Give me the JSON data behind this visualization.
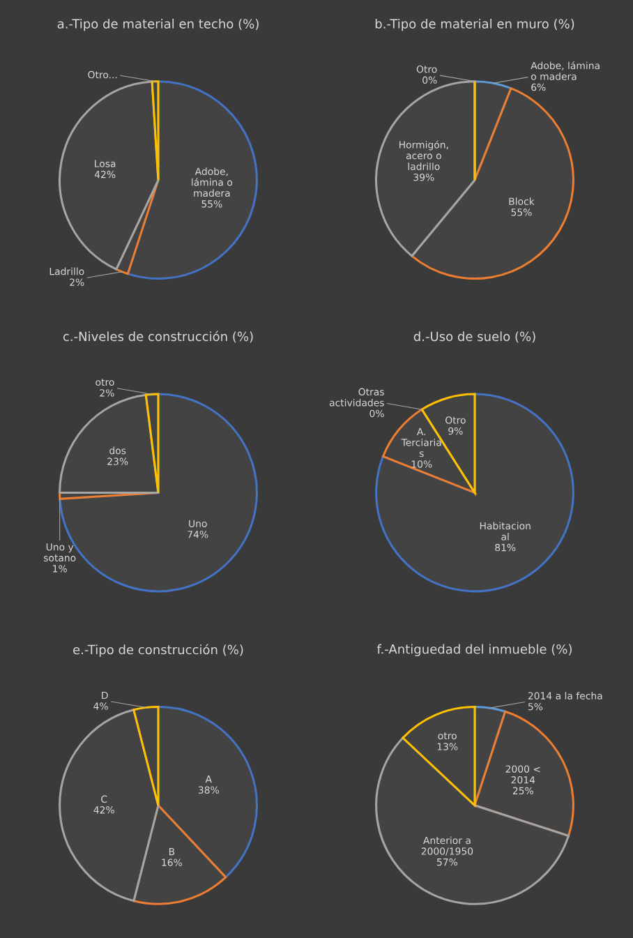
{
  "chart_data": [
    {
      "type": "pie",
      "title": "a.-Tipo de material en techo (%)",
      "categories": [
        "Adobe,\nlámina o\nmadera",
        "Ladrillo",
        "Losa",
        "Otro..."
      ],
      "values": [
        55,
        2,
        42,
        1
      ],
      "value_labels": [
        "55%",
        "2%",
        "42%",
        null
      ],
      "colors": [
        "#4472c4",
        "#ed7d31",
        "#a5a5a5",
        "#ffc000"
      ]
    },
    {
      "type": "pie",
      "title": "b.-Tipo de material en muro (%)",
      "categories": [
        "Adobe, lámina\no madera",
        "Block",
        "Hormigón,\nacero o\nladrillo",
        "Otro"
      ],
      "values": [
        6,
        55,
        39,
        0
      ],
      "value_labels": [
        "6%",
        "55%",
        "39%",
        "0%"
      ],
      "colors": [
        "#5b9bd5",
        "#ed7d31",
        "#a5a5a5",
        "#ffc000"
      ]
    },
    {
      "type": "pie",
      "title": "c.-Niveles de construcción (%)",
      "categories": [
        "Uno",
        "Uno y\nsotano",
        "dos",
        "otro"
      ],
      "values": [
        74,
        1,
        23,
        2
      ],
      "value_labels": [
        "74%",
        "1%",
        "23%",
        "2%"
      ],
      "colors": [
        "#4472c4",
        "#ed7d31",
        "#a5a5a5",
        "#ffc000"
      ]
    },
    {
      "type": "pie",
      "title": "d.-Uso de suelo (%)",
      "categories": [
        "Habitacion\nal",
        "A.\nTerciaria\ns",
        "Otras\nactividades",
        "Otro"
      ],
      "values": [
        81,
        10,
        0,
        9
      ],
      "value_labels": [
        "81%",
        "10%",
        "0%",
        "9%"
      ],
      "colors": [
        "#4472c4",
        "#ed7d31",
        "#a5a5a5",
        "#ffc000"
      ]
    },
    {
      "type": "pie",
      "title": "e.-Tipo de construcción (%)",
      "categories": [
        "A",
        "B",
        "C",
        "D"
      ],
      "values": [
        38,
        16,
        42,
        4
      ],
      "value_labels": [
        "38%",
        "16%",
        "42%",
        "4%"
      ],
      "colors": [
        "#4472c4",
        "#ed7d31",
        "#a5a5a5",
        "#ffc000"
      ]
    },
    {
      "type": "pie",
      "title": "f.-Antiguedad del inmueble (%)",
      "categories": [
        "2014 a la fecha",
        "2000 <\n2014",
        "Anterior a\n2000/1950",
        "otro"
      ],
      "values": [
        5,
        25,
        57,
        13
      ],
      "value_labels": [
        "5%",
        "25%",
        "57%",
        "13%"
      ],
      "colors": [
        "#5b9bd5",
        "#ed7d31",
        "#a5a5a5",
        "#ffc000"
      ]
    }
  ]
}
